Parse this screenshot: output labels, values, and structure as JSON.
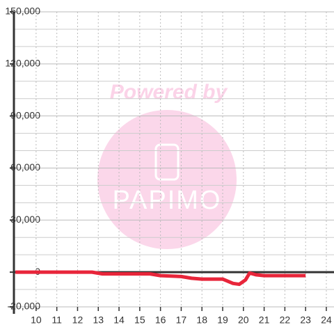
{
  "chart_data": {
    "type": "line",
    "annotations": [
      "Powered by",
      "PAPIMO"
    ],
    "x": [
      9,
      10,
      11,
      12,
      12.7,
      13.2,
      14,
      15,
      15.5,
      16,
      17,
      17.5,
      18,
      19,
      19.5,
      19.8,
      20.1,
      20.3,
      20.6,
      21,
      22,
      23
    ],
    "series": [
      {
        "color": "#e8253a",
        "values": [
          0,
          0,
          0,
          0,
          0,
          -1000,
          -1000,
          -1000,
          -1000,
          -2000,
          -2500,
          -3500,
          -4000,
          -4000,
          -6500,
          -7000,
          -4500,
          -500,
          -1500,
          -2000,
          -2000,
          -2000
        ]
      }
    ],
    "xlim": [
      8.93,
      24.37
    ],
    "xticks": [
      10,
      11,
      12,
      13,
      14,
      15,
      16,
      17,
      18,
      19,
      20,
      21,
      22,
      23,
      24
    ],
    "ylim": [
      -20000,
      150000
    ],
    "yticks": [
      {
        "value": -20000,
        "label": "-20,000"
      },
      0,
      {
        "value": 30000,
        "label": "30,000"
      },
      {
        "value": 60000,
        "label": "60,000"
      },
      {
        "value": 90000,
        "label": "90,000"
      },
      {
        "value": 120000,
        "label": "120,000"
      },
      {
        "value": 150000,
        "label": "150,000"
      }
    ],
    "yminor": [
      -10000,
      10000,
      20000,
      40000,
      50000,
      70000,
      80000,
      100000,
      110000,
      130000,
      140000
    ],
    "grid": true
  }
}
